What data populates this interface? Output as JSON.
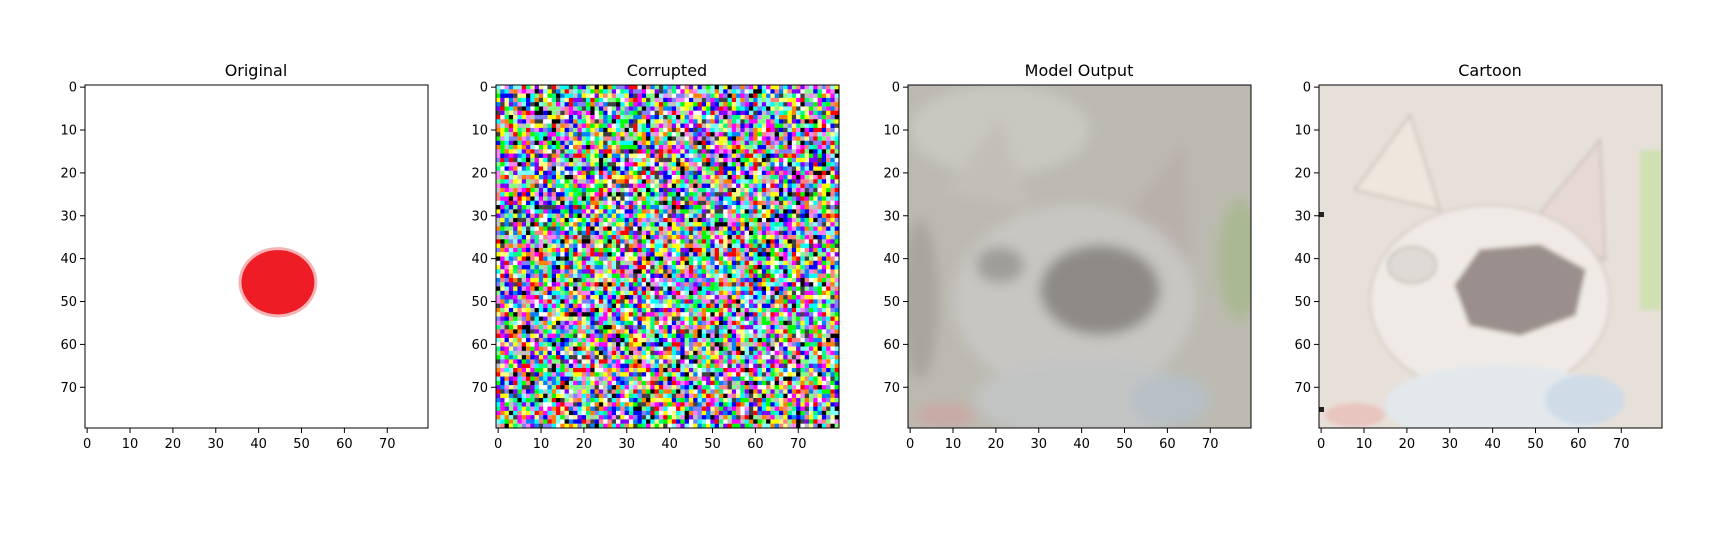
{
  "chart_data": [
    {
      "type": "image",
      "title": "Original",
      "xlim": [
        0,
        79
      ],
      "ylim": [
        79,
        0
      ],
      "xticks": [
        0,
        10,
        20,
        30,
        40,
        50,
        60,
        70
      ],
      "yticks": [
        0,
        10,
        20,
        30,
        40,
        50,
        60,
        70
      ],
      "content": "white background with a red blob",
      "blob_center": [
        44.5,
        45.5
      ],
      "blob_radius": [
        8.5,
        7.5
      ],
      "blob_color": "#ee1c25"
    },
    {
      "type": "image",
      "title": "Corrupted",
      "xlim": [
        0,
        79
      ],
      "ylim": [
        79,
        0
      ],
      "xticks": [
        0,
        10,
        20,
        30,
        40,
        50,
        60,
        70
      ],
      "yticks": [
        0,
        10,
        20,
        30,
        40,
        50,
        60,
        70
      ],
      "content": "random multicolor pixel noise"
    },
    {
      "type": "image",
      "title": "Model Output",
      "xlim": [
        0,
        79
      ],
      "ylim": [
        79,
        0
      ],
      "xticks": [
        0,
        10,
        20,
        30,
        40,
        50,
        60,
        70
      ],
      "yticks": [
        0,
        10,
        20,
        30,
        40,
        50,
        60,
        70
      ],
      "content": "blurry grey cat face",
      "base_color": "#bcbab0"
    },
    {
      "type": "image",
      "title": "Cartoon",
      "xlim": [
        0,
        79
      ],
      "ylim": [
        79,
        0
      ],
      "xticks": [
        0,
        10,
        20,
        30,
        40,
        50,
        60,
        70
      ],
      "yticks": [
        0,
        10,
        20,
        30,
        40,
        50,
        60,
        70
      ],
      "content": "pale cartoon-style cat face",
      "base_color": "#e7e0d9"
    }
  ]
}
